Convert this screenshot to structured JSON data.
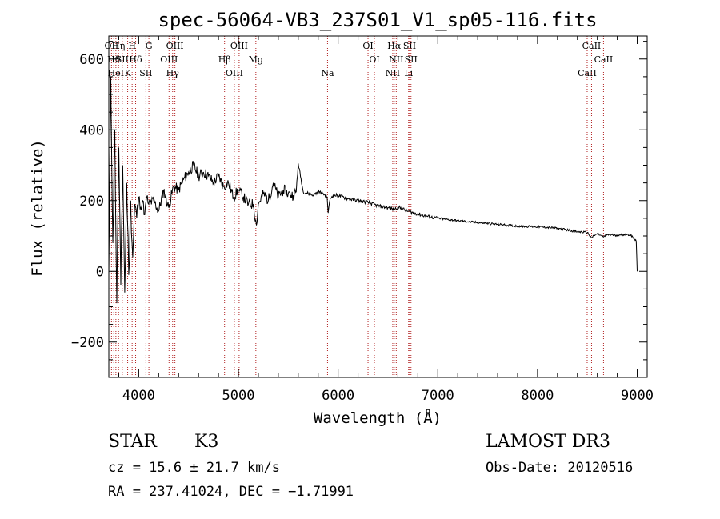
{
  "chart_data": {
    "type": "line",
    "title": "spec-56064-VB3_237S01_V1_sp05-116.fits",
    "xlabel": "Wavelength (Å)",
    "ylabel": "Flux (relative)",
    "xlim": [
      3700,
      9100
    ],
    "ylim": [
      -300,
      665
    ],
    "xticks": [
      4000,
      5000,
      6000,
      7000,
      8000,
      9000
    ],
    "yticks": [
      -200,
      0,
      200,
      400,
      600
    ],
    "ytick_labels": [
      "−200",
      "0",
      "200",
      "400",
      "600"
    ],
    "series": [
      {
        "name": "flux",
        "x": [
          3700,
          3720,
          3740,
          3760,
          3780,
          3800,
          3820,
          3840,
          3860,
          3880,
          3900,
          3920,
          3940,
          3960,
          3980,
          4000,
          4020,
          4040,
          4060,
          4080,
          4100,
          4150,
          4200,
          4250,
          4300,
          4350,
          4400,
          4450,
          4500,
          4550,
          4600,
          4650,
          4700,
          4750,
          4800,
          4850,
          4900,
          4950,
          5000,
          5050,
          5100,
          5150,
          5180,
          5200,
          5250,
          5300,
          5350,
          5400,
          5450,
          5500,
          5550,
          5580,
          5600,
          5650,
          5700,
          5750,
          5800,
          5850,
          5890,
          5900,
          5920,
          5950,
          6000,
          6100,
          6200,
          6300,
          6400,
          6500,
          6563,
          6600,
          6700,
          6800,
          6900,
          7000,
          7200,
          7400,
          7600,
          7800,
          8000,
          8200,
          8400,
          8500,
          8540,
          8600,
          8660,
          8700,
          8800,
          8900,
          8950,
          8990,
          9000
        ],
        "y": [
          -10,
          550,
          80,
          400,
          -90,
          350,
          -40,
          300,
          -60,
          250,
          -10,
          200,
          40,
          190,
          150,
          210,
          180,
          200,
          160,
          210,
          190,
          200,
          170,
          230,
          180,
          240,
          230,
          260,
          280,
          300,
          270,
          280,
          270,
          250,
          270,
          240,
          250,
          210,
          230,
          210,
          190,
          190,
          130,
          190,
          220,
          200,
          250,
          210,
          230,
          220,
          215,
          225,
          305,
          225,
          220,
          215,
          225,
          220,
          210,
          165,
          205,
          215,
          215,
          205,
          200,
          195,
          185,
          180,
          175,
          182,
          170,
          162,
          155,
          150,
          143,
          138,
          133,
          128,
          126,
          122,
          112,
          110,
          95,
          107,
          97,
          104,
          102,
          105,
          100,
          85,
          0
        ]
      }
    ],
    "line_labels": [
      {
        "label": "OII",
        "wavelength": 3727
      },
      {
        "label": "Hθ",
        "wavelength": 3750
      },
      {
        "label": "HeI",
        "wavelength": 3771
      },
      {
        "label": "Hη",
        "wavelength": 3798
      },
      {
        "label": "SII",
        "wavelength": 3835
      },
      {
        "label": "K",
        "wavelength": 3889
      },
      {
        "label": "H",
        "wavelength": 3934
      },
      {
        "label": "Hδ",
        "wavelength": 3969
      },
      {
        "label": "SII",
        "wavelength": 4072
      },
      {
        "label": "G",
        "wavelength": 4102
      },
      {
        "label": "OIII",
        "wavelength": 4304
      },
      {
        "label": "Hγ",
        "wavelength": 4340
      },
      {
        "label": "OIII",
        "wavelength": 4363
      },
      {
        "label": "Hβ",
        "wavelength": 4861
      },
      {
        "label": "OIII",
        "wavelength": 4959
      },
      {
        "label": "OIII",
        "wavelength": 5007
      },
      {
        "label": "Mg",
        "wavelength": 5175
      },
      {
        "label": "Na",
        "wavelength": 5894
      },
      {
        "label": "OI",
        "wavelength": 6300
      },
      {
        "label": "OI",
        "wavelength": 6364
      },
      {
        "label": "NII",
        "wavelength": 6548
      },
      {
        "label": "Hα",
        "wavelength": 6563
      },
      {
        "label": "NII",
        "wavelength": 6583
      },
      {
        "label": "Li",
        "wavelength": 6707
      },
      {
        "label": "SII",
        "wavelength": 6717
      },
      {
        "label": "SII",
        "wavelength": 6731
      },
      {
        "label": "CaII",
        "wavelength": 8498
      },
      {
        "label": "CaII",
        "wavelength": 8542
      },
      {
        "label": "CaII",
        "wavelength": 8662
      }
    ]
  },
  "info": {
    "class": "STAR",
    "subclass": "K3",
    "survey": "LAMOST DR3",
    "cz": "cz = 15.6 ± 21.7 km/s",
    "obs_date": "Obs-Date: 20120516",
    "radec": "RA = 237.41024, DEC =  −1.71991"
  }
}
